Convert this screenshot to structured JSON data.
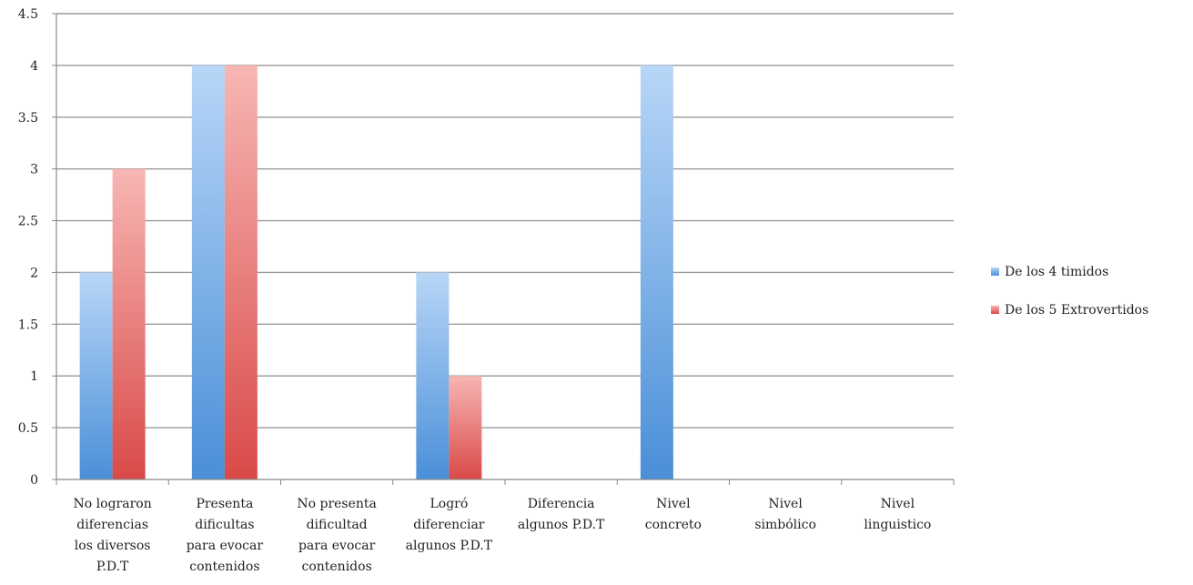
{
  "chart_data": {
    "type": "bar",
    "title": "",
    "xlabel": "",
    "ylabel": "",
    "ylim": [
      0,
      4.5
    ],
    "yticks": [
      "0",
      "0.5",
      "1",
      "1.5",
      "2",
      "2.5",
      "3",
      "3.5",
      "4",
      "4.5"
    ],
    "grid": true,
    "legend_position": "right",
    "categories": [
      [
        "No lograron",
        "diferencias",
        "los diversos",
        "P.D.T"
      ],
      [
        "Presenta",
        "dificultas",
        "para evocar",
        "contenidos"
      ],
      [
        "No presenta",
        "dificultad",
        "para evocar",
        "contenidos"
      ],
      [
        "Logró",
        "diferenciar",
        "algunos P.D.T"
      ],
      [
        "Diferencia",
        "algunos P.D.T"
      ],
      [
        "Nivel",
        "concreto"
      ],
      [
        "Nivel",
        "simbólico"
      ],
      [
        "Nivel",
        "linguistico"
      ]
    ],
    "series": [
      {
        "name": "De los 4 timidos",
        "values": [
          2,
          4,
          0,
          2,
          0,
          4,
          0,
          0
        ],
        "color_light": "#b8d6f7",
        "color_dark": "#4a8fd8"
      },
      {
        "name": "De los 5 Extrovertidos",
        "values": [
          3,
          4,
          0,
          1,
          0,
          0,
          0,
          0
        ],
        "color_light": "#f7b6b4",
        "color_dark": "#d94a48"
      }
    ]
  }
}
